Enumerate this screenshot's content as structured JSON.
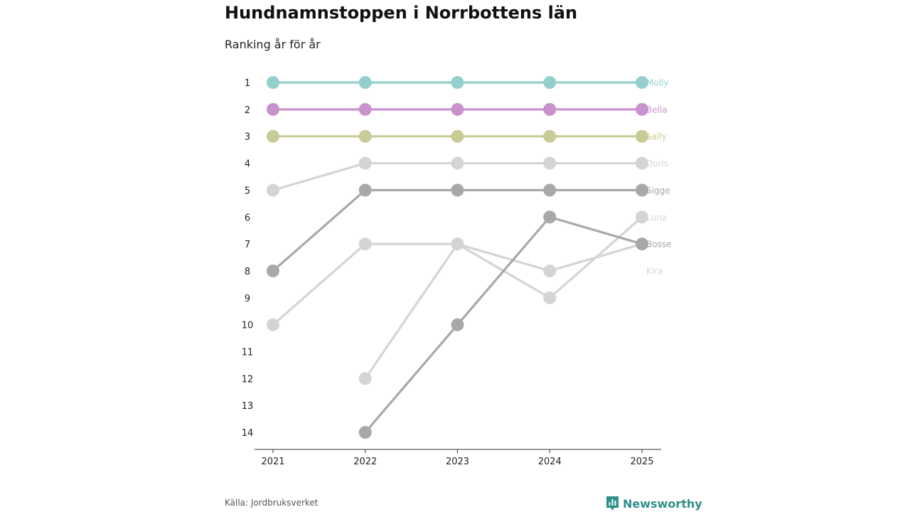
{
  "page": {
    "title": "Hundnamnstoppen i Norrbottens län",
    "subtitle": "Ranking år för år",
    "source": "Källa: Jordbruksverket",
    "brand": "Newsworthy",
    "brand_color": "#2f8f8a",
    "brand_icon": "bar-chart-badge-icon"
  },
  "chart_data": {
    "type": "line",
    "title": "Hundnamnstoppen i Norrbottens län",
    "subtitle": "Ranking år för år",
    "xlabel": "",
    "ylabel": "",
    "x": [
      "2021",
      "2022",
      "2023",
      "2024",
      "2025"
    ],
    "y_ticks": [
      1,
      2,
      3,
      4,
      5,
      6,
      7,
      8,
      9,
      10,
      11,
      12,
      13,
      14
    ],
    "ylim": [
      1,
      14
    ],
    "y_inverted": true,
    "grid": false,
    "series": [
      {
        "name": "Kira",
        "color": "#d4d4d4",
        "values": [
          10,
          7,
          7,
          8,
          7
        ],
        "label_rank": 8
      },
      {
        "name": "Luna",
        "color": "#d4d4d4",
        "values": [
          null,
          12,
          7,
          9,
          6
        ],
        "label_rank": 6
      },
      {
        "name": "Doris",
        "color": "#d4d4d4",
        "values": [
          5,
          4,
          4,
          4,
          4
        ],
        "label_rank": 4
      },
      {
        "name": "Bosse",
        "color": "#a8a8a8",
        "values": [
          null,
          14,
          10,
          6,
          7
        ],
        "label_rank": 7
      },
      {
        "name": "Sigge",
        "color": "#a8a8a8",
        "values": [
          8,
          5,
          5,
          5,
          5
        ],
        "label_rank": 5
      },
      {
        "name": "Sally",
        "color": "#c9cb96",
        "values": [
          3,
          3,
          3,
          3,
          3
        ],
        "label_rank": 3
      },
      {
        "name": "Bella",
        "color": "#c893cc",
        "values": [
          2,
          2,
          2,
          2,
          2
        ],
        "label_rank": 2
      },
      {
        "name": "Molly",
        "color": "#94cfce",
        "values": [
          1,
          1,
          1,
          1,
          1
        ],
        "label_rank": 1
      }
    ]
  }
}
